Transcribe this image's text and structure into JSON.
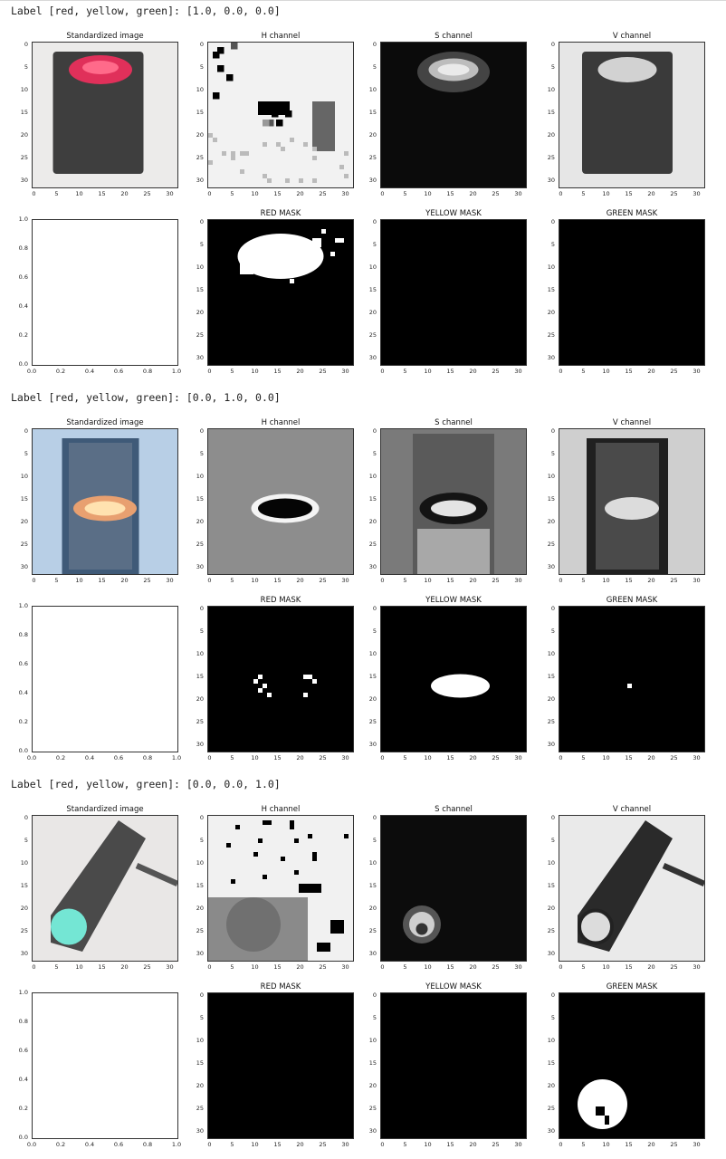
{
  "rows": [
    {
      "label": "Label [red, yellow, green]: [1.0, 0.0, 0.0]",
      "top_titles": [
        "Standardized image",
        "H channel",
        "S channel",
        "V channel"
      ],
      "bottom_titles": [
        "",
        "RED MASK",
        "YELLOW MASK",
        "GREEN MASK"
      ],
      "image_kind": "red",
      "mask_active": "red"
    },
    {
      "label": "Label [red, yellow, green]: [0.0, 1.0, 0.0]",
      "top_titles": [
        "Standardized image",
        "H channel",
        "S channel",
        "V channel"
      ],
      "bottom_titles": [
        "",
        "RED MASK",
        "YELLOW MASK",
        "GREEN MASK"
      ],
      "image_kind": "yellow",
      "mask_active": "yellow"
    },
    {
      "label": "Label [red, yellow, green]: [0.0, 0.0, 1.0]",
      "top_titles": [
        "Standardized image",
        "H channel",
        "S channel",
        "V channel"
      ],
      "bottom_titles": [
        "",
        "RED MASK",
        "YELLOW MASK",
        "GREEN MASK"
      ],
      "image_kind": "green",
      "mask_active": "green"
    }
  ],
  "pixel_ticks": [
    "0",
    "5",
    "10",
    "15",
    "20",
    "25",
    "30"
  ],
  "unit_ticks_x": [
    "0.0",
    "0.2",
    "0.4",
    "0.6",
    "0.8",
    "1.0"
  ],
  "unit_ticks_y": [
    "0.0",
    "0.2",
    "0.4",
    "0.6",
    "0.8",
    "1.0"
  ]
}
